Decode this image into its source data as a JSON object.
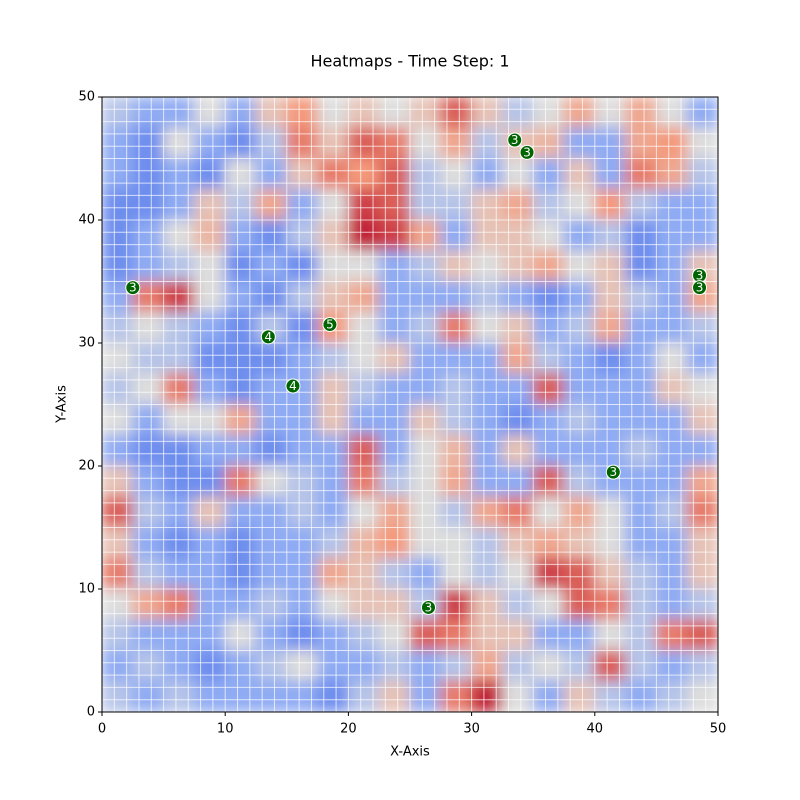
{
  "chart_data": {
    "type": "heatmap",
    "title": "Heatmaps - Time Step: 1",
    "x_label": "X-Axis",
    "y_label": "Y-Axis",
    "xlim": [
      0,
      50
    ],
    "ylim": [
      0,
      50
    ],
    "xticks": [
      0,
      10,
      20,
      30,
      40,
      50
    ],
    "yticks": [
      0,
      10,
      20,
      30,
      40,
      50
    ],
    "colormap": "coolwarm",
    "z_top_to_bottom": [
      [
        0.4,
        0.3,
        0.3,
        0.5,
        0.3,
        0.6,
        0.75,
        0.5,
        0.6,
        0.5,
        0.6,
        0.85,
        0.6,
        0.4,
        0.5,
        0.7,
        0.5,
        0.7,
        0.5,
        0.3
      ],
      [
        0.3,
        0.2,
        0.5,
        0.3,
        0.2,
        0.4,
        0.8,
        0.6,
        0.85,
        0.8,
        0.5,
        0.7,
        0.4,
        0.6,
        0.65,
        0.3,
        0.3,
        0.7,
        0.75,
        0.5
      ],
      [
        0.3,
        0.2,
        0.3,
        0.2,
        0.5,
        0.3,
        0.6,
        0.8,
        0.75,
        0.85,
        0.4,
        0.5,
        0.3,
        0.5,
        0.3,
        0.6,
        0.3,
        0.8,
        0.7,
        0.4
      ],
      [
        0.2,
        0.2,
        0.3,
        0.6,
        0.4,
        0.7,
        0.3,
        0.5,
        0.9,
        0.85,
        0.4,
        0.4,
        0.6,
        0.7,
        0.4,
        0.5,
        0.75,
        0.4,
        0.3,
        0.3
      ],
      [
        0.2,
        0.3,
        0.5,
        0.65,
        0.3,
        0.2,
        0.4,
        0.6,
        0.95,
        0.9,
        0.7,
        0.3,
        0.6,
        0.6,
        0.5,
        0.3,
        0.4,
        0.2,
        0.3,
        0.3
      ],
      [
        0.2,
        0.3,
        0.4,
        0.5,
        0.2,
        0.3,
        0.2,
        0.5,
        0.5,
        0.3,
        0.4,
        0.6,
        0.5,
        0.6,
        0.7,
        0.5,
        0.6,
        0.2,
        0.3,
        0.6
      ],
      [
        0.3,
        0.8,
        0.9,
        0.5,
        0.3,
        0.2,
        0.4,
        0.6,
        0.7,
        0.3,
        0.3,
        0.3,
        0.4,
        0.3,
        0.2,
        0.3,
        0.6,
        0.4,
        0.3,
        0.7
      ],
      [
        0.4,
        0.5,
        0.4,
        0.3,
        0.2,
        0.4,
        0.2,
        0.75,
        0.5,
        0.3,
        0.4,
        0.8,
        0.5,
        0.6,
        0.3,
        0.4,
        0.7,
        0.3,
        0.3,
        0.4
      ],
      [
        0.5,
        0.4,
        0.4,
        0.2,
        0.2,
        0.2,
        0.3,
        0.4,
        0.5,
        0.6,
        0.3,
        0.3,
        0.3,
        0.7,
        0.4,
        0.3,
        0.2,
        0.3,
        0.5,
        0.3
      ],
      [
        0.4,
        0.5,
        0.8,
        0.3,
        0.2,
        0.3,
        0.3,
        0.6,
        0.4,
        0.3,
        0.3,
        0.4,
        0.3,
        0.3,
        0.85,
        0.3,
        0.3,
        0.3,
        0.6,
        0.5
      ],
      [
        0.5,
        0.3,
        0.5,
        0.5,
        0.7,
        0.3,
        0.3,
        0.6,
        0.3,
        0.3,
        0.6,
        0.4,
        0.3,
        0.2,
        0.3,
        0.4,
        0.3,
        0.3,
        0.3,
        0.6
      ],
      [
        0.3,
        0.2,
        0.2,
        0.3,
        0.3,
        0.2,
        0.3,
        0.3,
        0.85,
        0.3,
        0.5,
        0.65,
        0.3,
        0.6,
        0.3,
        0.3,
        0.3,
        0.4,
        0.3,
        0.3
      ],
      [
        0.6,
        0.3,
        0.2,
        0.2,
        0.8,
        0.5,
        0.4,
        0.3,
        0.8,
        0.4,
        0.5,
        0.7,
        0.3,
        0.3,
        0.85,
        0.4,
        0.3,
        0.3,
        0.3,
        0.7
      ],
      [
        0.85,
        0.4,
        0.3,
        0.6,
        0.3,
        0.3,
        0.4,
        0.3,
        0.5,
        0.7,
        0.5,
        0.4,
        0.7,
        0.8,
        0.5,
        0.7,
        0.5,
        0.3,
        0.4,
        0.8
      ],
      [
        0.6,
        0.3,
        0.2,
        0.3,
        0.2,
        0.3,
        0.3,
        0.4,
        0.65,
        0.75,
        0.5,
        0.5,
        0.4,
        0.6,
        0.7,
        0.6,
        0.5,
        0.3,
        0.3,
        0.6
      ],
      [
        0.8,
        0.4,
        0.3,
        0.3,
        0.2,
        0.3,
        0.3,
        0.7,
        0.6,
        0.4,
        0.3,
        0.5,
        0.4,
        0.5,
        0.9,
        0.85,
        0.6,
        0.4,
        0.3,
        0.6
      ],
      [
        0.5,
        0.7,
        0.8,
        0.3,
        0.3,
        0.4,
        0.3,
        0.5,
        0.6,
        0.6,
        0.4,
        0.9,
        0.6,
        0.4,
        0.5,
        0.85,
        0.8,
        0.4,
        0.3,
        0.4
      ],
      [
        0.4,
        0.3,
        0.3,
        0.3,
        0.5,
        0.3,
        0.2,
        0.3,
        0.4,
        0.5,
        0.85,
        0.8,
        0.6,
        0.6,
        0.3,
        0.3,
        0.5,
        0.4,
        0.8,
        0.85
      ],
      [
        0.3,
        0.4,
        0.3,
        0.2,
        0.3,
        0.4,
        0.5,
        0.3,
        0.3,
        0.4,
        0.3,
        0.4,
        0.7,
        0.4,
        0.5,
        0.4,
        0.85,
        0.4,
        0.3,
        0.4
      ],
      [
        0.4,
        0.3,
        0.4,
        0.3,
        0.3,
        0.3,
        0.3,
        0.2,
        0.4,
        0.6,
        0.3,
        0.8,
        0.95,
        0.5,
        0.3,
        0.6,
        0.4,
        0.3,
        0.4,
        0.5
      ]
    ],
    "marker_color": "#006400",
    "markers": [
      {
        "x": 33.5,
        "y": 46.5,
        "label": 3
      },
      {
        "x": 34.5,
        "y": 45.5,
        "label": 3
      },
      {
        "x": 2.5,
        "y": 34.5,
        "label": 3
      },
      {
        "x": 48.5,
        "y": 35.5,
        "label": 3
      },
      {
        "x": 48.5,
        "y": 34.5,
        "label": 3
      },
      {
        "x": 13.5,
        "y": 30.5,
        "label": 4
      },
      {
        "x": 18.5,
        "y": 31.5,
        "label": 5
      },
      {
        "x": 15.5,
        "y": 26.5,
        "label": 4
      },
      {
        "x": 41.5,
        "y": 19.5,
        "label": 3
      },
      {
        "x": 26.5,
        "y": 8.5,
        "label": 3
      }
    ]
  }
}
